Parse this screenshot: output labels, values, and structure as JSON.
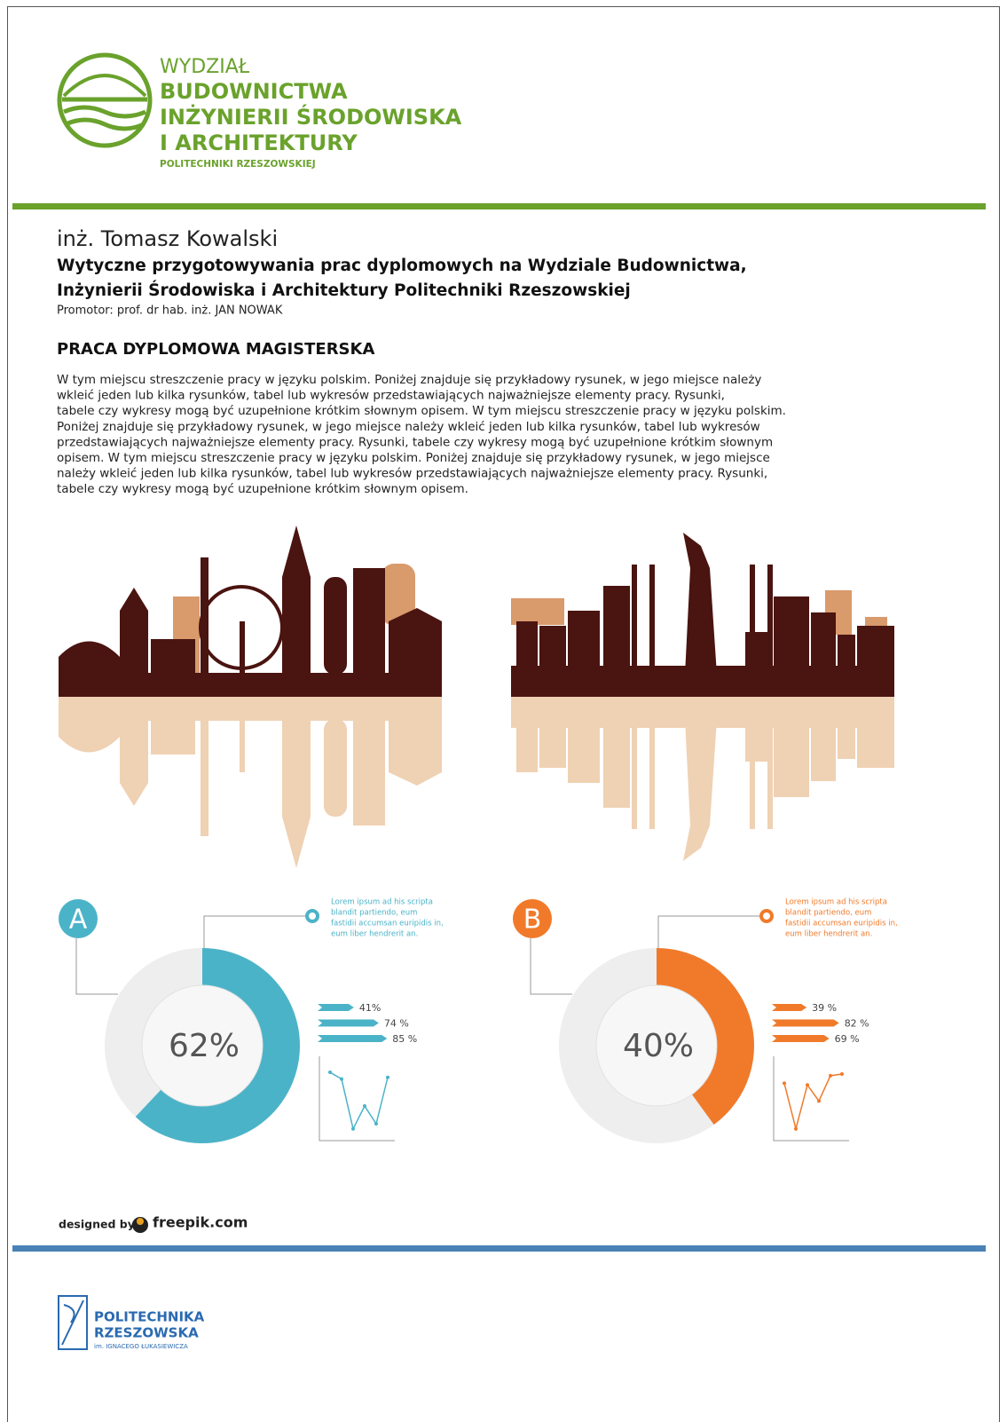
{
  "header": {
    "line1": "WYDZIAŁ",
    "line2": "BUDOWNICTWA",
    "line3": "INŻYNIERII ŚRODOWISKA",
    "line4": "I ARCHITEKTURY",
    "line5": "POLITECHNIKI RZESZOWSKIEJ"
  },
  "author": "inż. Tomasz Kowalski",
  "title_lines": [
    "Wytyczne przygotowywania prac dyplomowych na Wydziale Budownictwa,",
    "Inżynierii Środowiska i Architektury Politechniki Rzeszowskiej"
  ],
  "promotor": "Promotor: prof. dr hab. inż. JAN NOWAK",
  "section_title": "PRACA DYPLOMOWA MAGISTERSKA",
  "abstract": [
    "W tym miejscu streszczenie pracy w języku polskim. Poniżej znajduje się przykładowy rysunek, w jego miejsce należy",
    "wkleić jeden lub kilka rysunków, tabel lub wykresów przedstawiających najważniejsze elementy pracy. Rysunki,",
    "tabele czy wykresy mogą być uzupełnione krótkim słownym opisem. W tym miejscu streszczenie pracy w języku polskim.",
    "Poniżej znajduje się przykładowy rysunek, w jego miejsce należy wkleić jeden lub kilka rysunków, tabel lub wykresów",
    "przedstawiających najważniejsze elementy pracy. Rysunki, tabele czy wykresy mogą być uzupełnione krótkim słownym",
    "opisem. W tym miejscu streszczenie pracy w języku polskim. Poniżej znajduje się przykładowy rysunek, w jego miejsce",
    "należy wkleić jeden lub kilka rysunków, tabel lub wykresów przedstawiających najważniejsze elementy pracy. Rysunki,",
    "tabele czy wykresy mogą być uzupełnione krótkim słownym opisem."
  ],
  "infographics": [
    {
      "letter": "A",
      "color": "#4bb3c8",
      "donut": {
        "value": 62,
        "label": "62%"
      },
      "note_lines": [
        "Lorem ipsum ad his scripta",
        "blandit partiendo, eum",
        "fastidii accumsan euripidis in,",
        "eum liber hendrerit an."
      ],
      "bars": [
        {
          "value": 41,
          "label": "41%"
        },
        {
          "value": 74,
          "label": "74 %"
        },
        {
          "value": 85,
          "label": "85 %"
        }
      ],
      "line_values": [
        81,
        73,
        14,
        41,
        20,
        75
      ],
      "ylim": [
        0,
        100
      ]
    },
    {
      "letter": "B",
      "color": "#f07a2a",
      "donut": {
        "value": 40,
        "label": "40%"
      },
      "note_lines": [
        "Lorem ipsum ad his scripta",
        "blandit partiendo, eum",
        "fastidii accumsan euripidis in,",
        "eum liber hendrerit an."
      ],
      "bars": [
        {
          "value": 39,
          "label": "39 %"
        },
        {
          "value": 82,
          "label": "82 %"
        },
        {
          "value": 69,
          "label": "69 %"
        }
      ],
      "line_values": [
        68,
        14,
        66,
        47,
        77,
        79
      ],
      "ylim": [
        0,
        100
      ]
    }
  ],
  "credit": {
    "prefix": "designed by",
    "brand": "freepik.com"
  },
  "footer": {
    "line1": "POLITECHNIKA",
    "line2": "RZESZOWSKA",
    "line3": "im. IGNACEGO ŁUKASIEWICZA"
  }
}
